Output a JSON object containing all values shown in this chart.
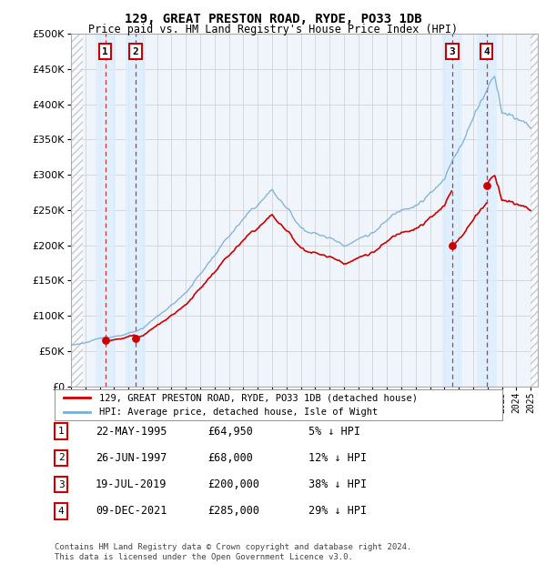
{
  "title": "129, GREAT PRESTON ROAD, RYDE, PO33 1DB",
  "subtitle": "Price paid vs. HM Land Registry's House Price Index (HPI)",
  "ylim": [
    0,
    500000
  ],
  "yticks": [
    0,
    50000,
    100000,
    150000,
    200000,
    250000,
    300000,
    350000,
    400000,
    450000,
    500000
  ],
  "xlim_start": 1993.0,
  "xlim_end": 2025.5,
  "sale_dates": [
    1995.389,
    1997.486,
    2019.543,
    2021.936
  ],
  "sale_prices": [
    64950,
    68000,
    200000,
    285000
  ],
  "hpi_color": "#7bafd4",
  "sale_color": "#cc0000",
  "legend_label_sale": "129, GREAT PRESTON ROAD, RYDE, PO33 1DB (detached house)",
  "legend_label_hpi": "HPI: Average price, detached house, Isle of Wight",
  "transactions": [
    {
      "num": 1,
      "date": "22-MAY-1995",
      "price": "£64,950",
      "rel": "5% ↓ HPI",
      "x": 1995.389
    },
    {
      "num": 2,
      "date": "26-JUN-1997",
      "price": "£68,000",
      "rel": "12% ↓ HPI",
      "x": 1997.486
    },
    {
      "num": 3,
      "date": "19-JUL-2019",
      "price": "£200,000",
      "rel": "38% ↓ HPI",
      "x": 2019.543
    },
    {
      "num": 4,
      "date": "09-DEC-2021",
      "price": "£285,000",
      "rel": "29% ↓ HPI",
      "x": 2021.936
    }
  ],
  "footer": "Contains HM Land Registry data © Crown copyright and database right 2024.\nThis data is licensed under the Open Government Licence v3.0.",
  "grid_color": "#cccccc",
  "panel_bg": "#f0f4fb",
  "shaded_col_color": "#ddeeff",
  "hatch_color": "#cccccc"
}
